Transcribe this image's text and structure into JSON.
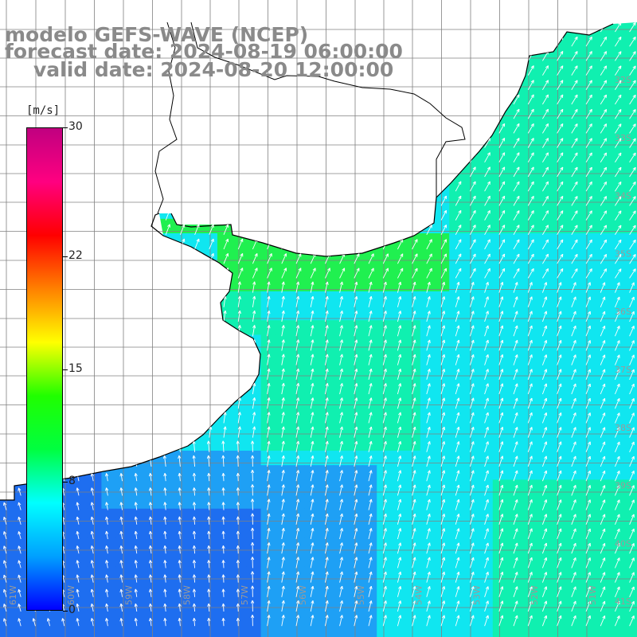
{
  "title": {
    "line1": "modelo GEFS-WAVE (NCEP)",
    "line2": "forecast date: 2024-08-19 06:00:00",
    "line3": "valid date: 2024-08-20 12:00:00"
  },
  "colorbar": {
    "units": "[m/s]",
    "ticks": [
      "30",
      "22",
      "15",
      "8",
      "0"
    ],
    "tick_values": [
      30,
      22,
      15,
      8,
      0
    ],
    "min": 0,
    "max": 30,
    "colors": [
      "#0000ff",
      "#00a0ff",
      "#00ffff",
      "#00ff40",
      "#20ff00",
      "#ffff00",
      "#ff8000",
      "#ff0000",
      "#ff0080",
      "#c00080"
    ]
  },
  "map": {
    "lat_labels": [
      "32S",
      "33S",
      "34S",
      "35S",
      "36S",
      "37S",
      "38S",
      "39S",
      "40S",
      "41S"
    ],
    "lon_labels": [
      "61W",
      "60W",
      "59W",
      "58W",
      "57W",
      "56W",
      "55W",
      "54W",
      "53W",
      "52W",
      "51W"
    ],
    "ocean_colors": {
      "blue": "#1e6ef0",
      "light_blue": "#1ea0f5",
      "cyan": "#10e6f0",
      "aqua_green": "#10f0b0",
      "green": "#20f050"
    },
    "land_color": "#ffffff",
    "grid_color": "#808080",
    "arrow_color": "#ffffff"
  }
}
